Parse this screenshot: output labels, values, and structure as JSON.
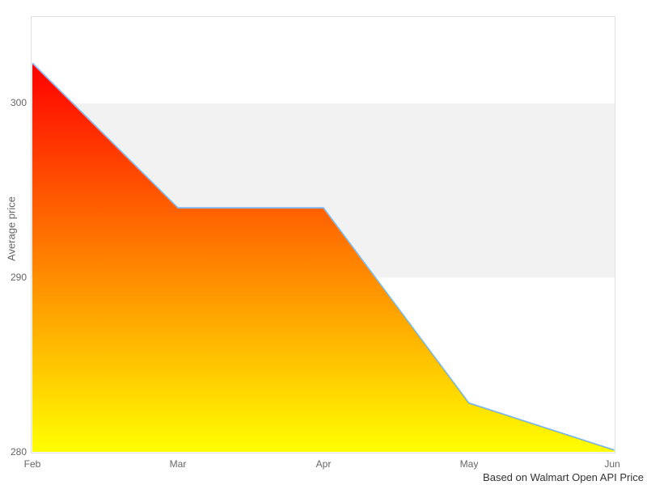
{
  "chart_data": {
    "type": "area",
    "categories": [
      "Feb",
      "Mar",
      "Apr",
      "May",
      "Jun"
    ],
    "values": [
      302.3,
      294,
      294,
      282.8,
      280.1
    ],
    "title": "",
    "xlabel": "",
    "ylabel": "Average price",
    "ylim": [
      280,
      305
    ],
    "yticks": [
      280,
      290,
      300
    ],
    "band": {
      "from": 290,
      "to": 300
    },
    "grid": false,
    "legend": "none",
    "caption": "Based on Walmart Open API Price"
  },
  "labels": {
    "y_axis_title": "Average price",
    "y_ticks": [
      "280",
      "290",
      "300"
    ],
    "x_ticks": [
      "Feb",
      "Mar",
      "Apr",
      "May",
      "Jun"
    ],
    "caption": "Based on Walmart Open API Price"
  },
  "colors": {
    "line": "#7cb5ec",
    "gradient_top": "#ff0000",
    "gradient_bottom": "#ffff00",
    "band": "#f2f2f2",
    "plot_border": "#e0e0e0",
    "tick_label": "#666666",
    "caption_text": "#333333",
    "background": "#ffffff"
  }
}
